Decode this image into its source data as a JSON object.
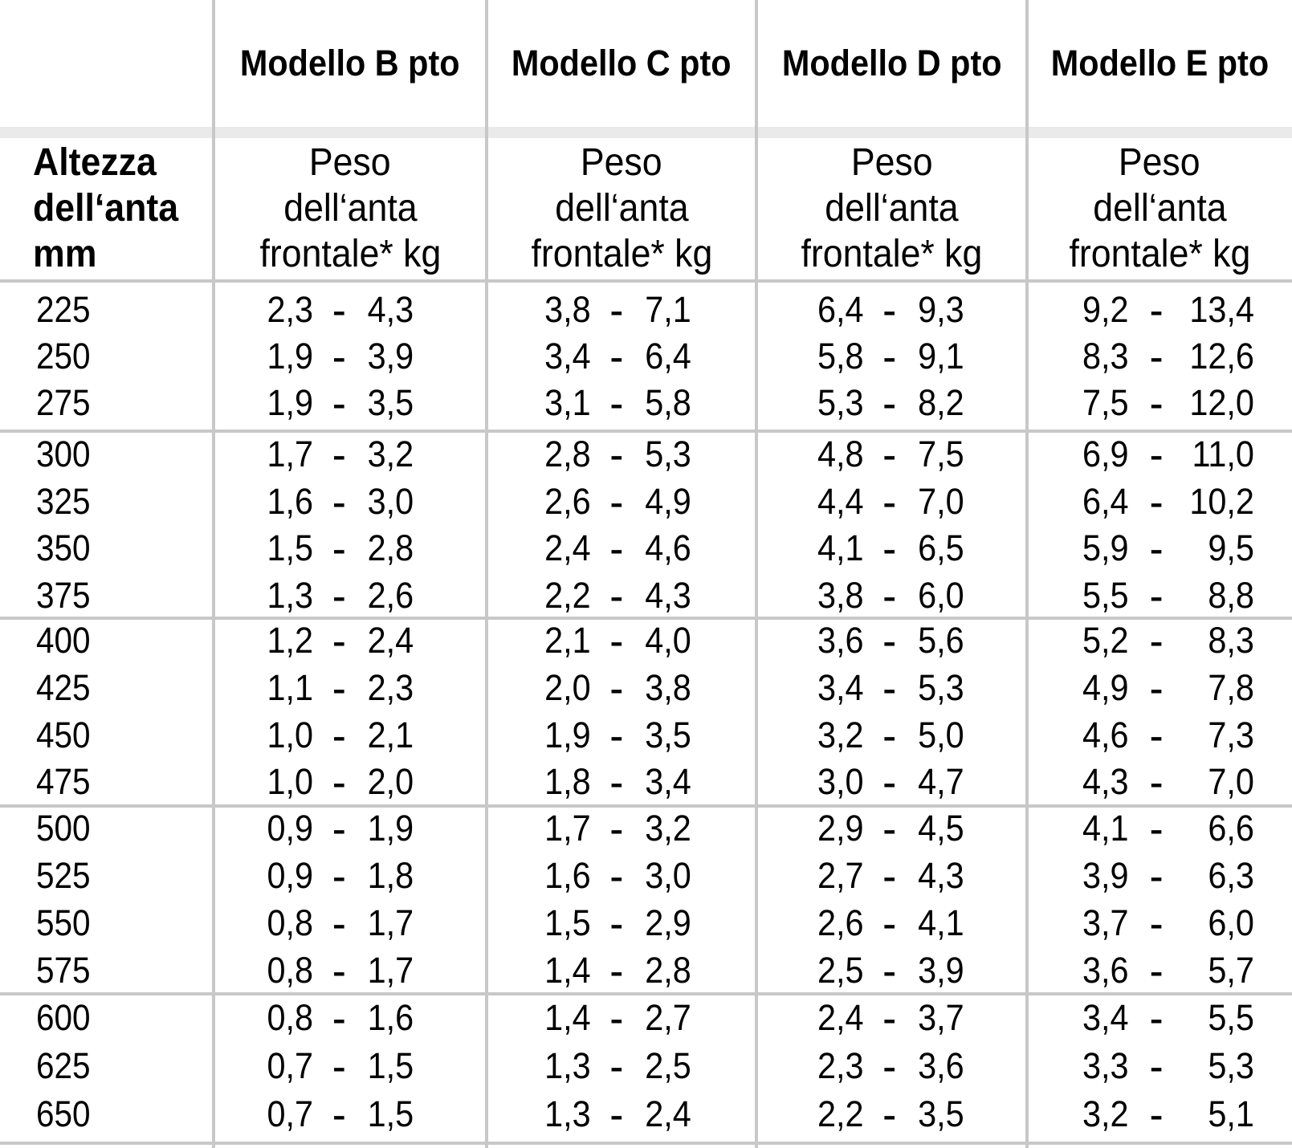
{
  "table": {
    "col_headers": [
      "Modello B pto",
      "Modello C pto",
      "Modello D pto",
      "Modello E pto"
    ],
    "row_header_lines": [
      "Altezza",
      "dell‘anta",
      "mm"
    ],
    "weight_header_lines": [
      "Peso",
      "dell‘anta",
      "frontale* kg"
    ],
    "dash": "-",
    "colors": {
      "line": "#c8c8c8",
      "band": "#eaeaea",
      "text": "#000000"
    },
    "sections": [
      {
        "rows": [
          {
            "height": "225",
            "cells": [
              [
                "2,3",
                "4,3"
              ],
              [
                "3,8",
                "7,1"
              ],
              [
                "6,4",
                "9,3"
              ],
              [
                "9,2",
                "13,4"
              ]
            ]
          },
          {
            "height": "250",
            "cells": [
              [
                "1,9",
                "3,9"
              ],
              [
                "3,4",
                "6,4"
              ],
              [
                "5,8",
                "9,1"
              ],
              [
                "8,3",
                "12,6"
              ]
            ]
          },
          {
            "height": "275",
            "cells": [
              [
                "1,9",
                "3,5"
              ],
              [
                "3,1",
                "5,8"
              ],
              [
                "5,3",
                "8,2"
              ],
              [
                "7,5",
                "12,0"
              ]
            ]
          }
        ]
      },
      {
        "rows": [
          {
            "height": "300",
            "cells": [
              [
                "1,7",
                "3,2"
              ],
              [
                "2,8",
                "5,3"
              ],
              [
                "4,8",
                "7,5"
              ],
              [
                "6,9",
                "11,0"
              ]
            ]
          },
          {
            "height": "325",
            "cells": [
              [
                "1,6",
                "3,0"
              ],
              [
                "2,6",
                "4,9"
              ],
              [
                "4,4",
                "7,0"
              ],
              [
                "6,4",
                "10,2"
              ]
            ]
          },
          {
            "height": "350",
            "cells": [
              [
                "1,5",
                "2,8"
              ],
              [
                "2,4",
                "4,6"
              ],
              [
                "4,1",
                "6,5"
              ],
              [
                "5,9",
                "9,5"
              ]
            ]
          },
          {
            "height": "375",
            "cells": [
              [
                "1,3",
                "2,6"
              ],
              [
                "2,2",
                "4,3"
              ],
              [
                "3,8",
                "6,0"
              ],
              [
                "5,5",
                "8,8"
              ]
            ]
          }
        ]
      },
      {
        "rows": [
          {
            "height": "400",
            "cells": [
              [
                "1,2",
                "2,4"
              ],
              [
                "2,1",
                "4,0"
              ],
              [
                "3,6",
                "5,6"
              ],
              [
                "5,2",
                "8,3"
              ]
            ]
          },
          {
            "height": "425",
            "cells": [
              [
                "1,1",
                "2,3"
              ],
              [
                "2,0",
                "3,8"
              ],
              [
                "3,4",
                "5,3"
              ],
              [
                "4,9",
                "7,8"
              ]
            ]
          },
          {
            "height": "450",
            "cells": [
              [
                "1,0",
                "2,1"
              ],
              [
                "1,9",
                "3,5"
              ],
              [
                "3,2",
                "5,0"
              ],
              [
                "4,6",
                "7,3"
              ]
            ]
          },
          {
            "height": "475",
            "cells": [
              [
                "1,0",
                "2,0"
              ],
              [
                "1,8",
                "3,4"
              ],
              [
                "3,0",
                "4,7"
              ],
              [
                "4,3",
                "7,0"
              ]
            ]
          }
        ]
      },
      {
        "rows": [
          {
            "height": "500",
            "cells": [
              [
                "0,9",
                "1,9"
              ],
              [
                "1,7",
                "3,2"
              ],
              [
                "2,9",
                "4,5"
              ],
              [
                "4,1",
                "6,6"
              ]
            ]
          },
          {
            "height": "525",
            "cells": [
              [
                "0,9",
                "1,8"
              ],
              [
                "1,6",
                "3,0"
              ],
              [
                "2,7",
                "4,3"
              ],
              [
                "3,9",
                "6,3"
              ]
            ]
          },
          {
            "height": "550",
            "cells": [
              [
                "0,8",
                "1,7"
              ],
              [
                "1,5",
                "2,9"
              ],
              [
                "2,6",
                "4,1"
              ],
              [
                "3,7",
                "6,0"
              ]
            ]
          },
          {
            "height": "575",
            "cells": [
              [
                "0,8",
                "1,7"
              ],
              [
                "1,4",
                "2,8"
              ],
              [
                "2,5",
                "3,9"
              ],
              [
                "3,6",
                "5,7"
              ]
            ]
          }
        ]
      },
      {
        "rows": [
          {
            "height": "600",
            "cells": [
              [
                "0,8",
                "1,6"
              ],
              [
                "1,4",
                "2,7"
              ],
              [
                "2,4",
                "3,7"
              ],
              [
                "3,4",
                "5,5"
              ]
            ]
          },
          {
            "height": "625",
            "cells": [
              [
                "0,7",
                "1,5"
              ],
              [
                "1,3",
                "2,5"
              ],
              [
                "2,3",
                "3,6"
              ],
              [
                "3,3",
                "5,3"
              ]
            ]
          },
          {
            "height": "650",
            "cells": [
              [
                "0,7",
                "1,5"
              ],
              [
                "1,3",
                "2,4"
              ],
              [
                "2,2",
                "3,5"
              ],
              [
                "3,2",
                "5,1"
              ]
            ]
          }
        ]
      }
    ]
  }
}
